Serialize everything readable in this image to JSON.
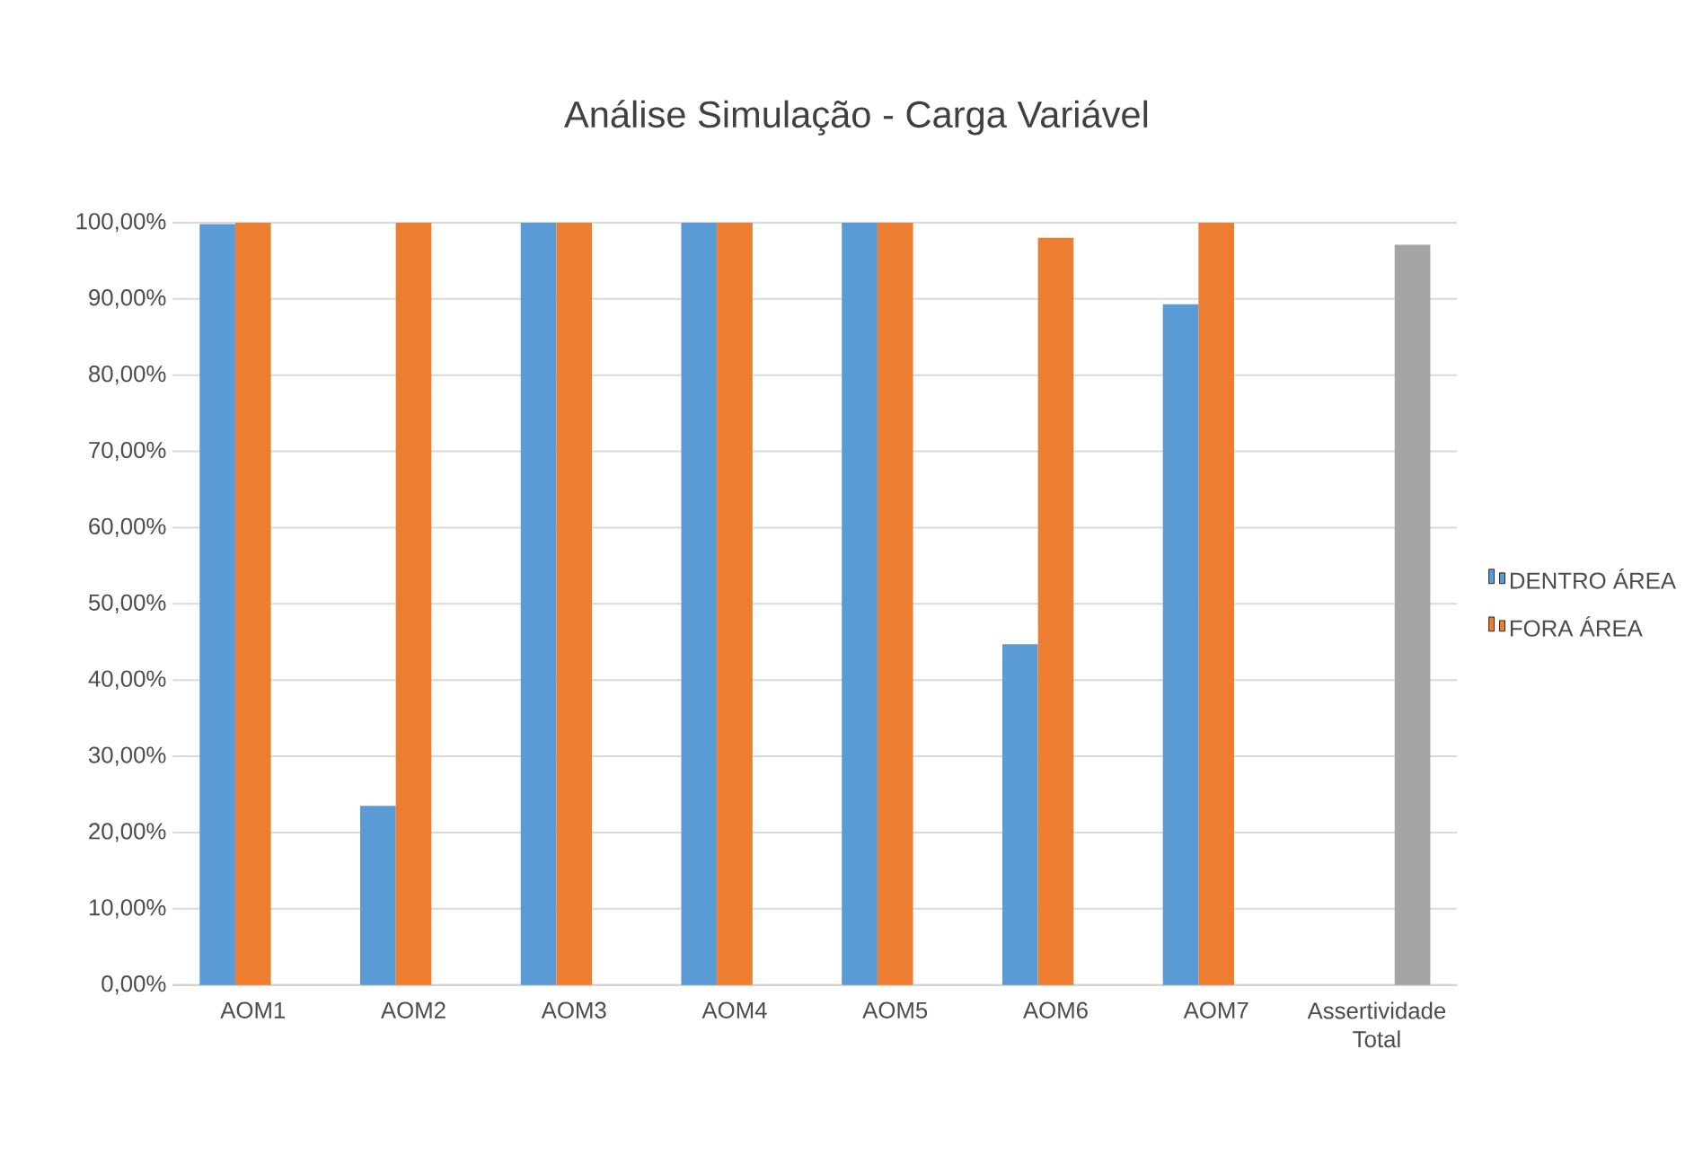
{
  "chart_data": {
    "type": "bar",
    "title": "Análise Simulação  - Carga Variável",
    "categories": [
      "AOM1",
      "AOM2",
      "AOM3",
      "AOM4",
      "AOM5",
      "AOM6",
      "AOM7",
      "Assertividade Total"
    ],
    "series": [
      {
        "name": "DENTRO ÁREA",
        "color": "#5b9bd5",
        "values": [
          99.8,
          23.5,
          100,
          100,
          100,
          44.7,
          89.3,
          null
        ]
      },
      {
        "name": "FORA ÁREA",
        "color": "#ed7d31",
        "values": [
          100,
          100,
          100,
          100,
          100,
          98.0,
          100,
          null
        ]
      },
      {
        "color": "#a5a5a5",
        "values": [
          null,
          null,
          null,
          null,
          null,
          null,
          null,
          97.1
        ]
      }
    ],
    "ylim": [
      0,
      100
    ],
    "yticks": [
      {
        "value": 0,
        "label": "0,00%"
      },
      {
        "value": 10,
        "label": "10,00%"
      },
      {
        "value": 20,
        "label": "20,00%"
      },
      {
        "value": 30,
        "label": "30,00%"
      },
      {
        "value": 40,
        "label": "40,00%"
      },
      {
        "value": 50,
        "label": "50,00%"
      },
      {
        "value": 60,
        "label": "60,00%"
      },
      {
        "value": 70,
        "label": "70,00%"
      },
      {
        "value": 80,
        "label": "80,00%"
      },
      {
        "value": 90,
        "label": "90,00%"
      },
      {
        "value": 100,
        "label": "100,00%"
      }
    ],
    "grid": "y",
    "legend": "right"
  }
}
